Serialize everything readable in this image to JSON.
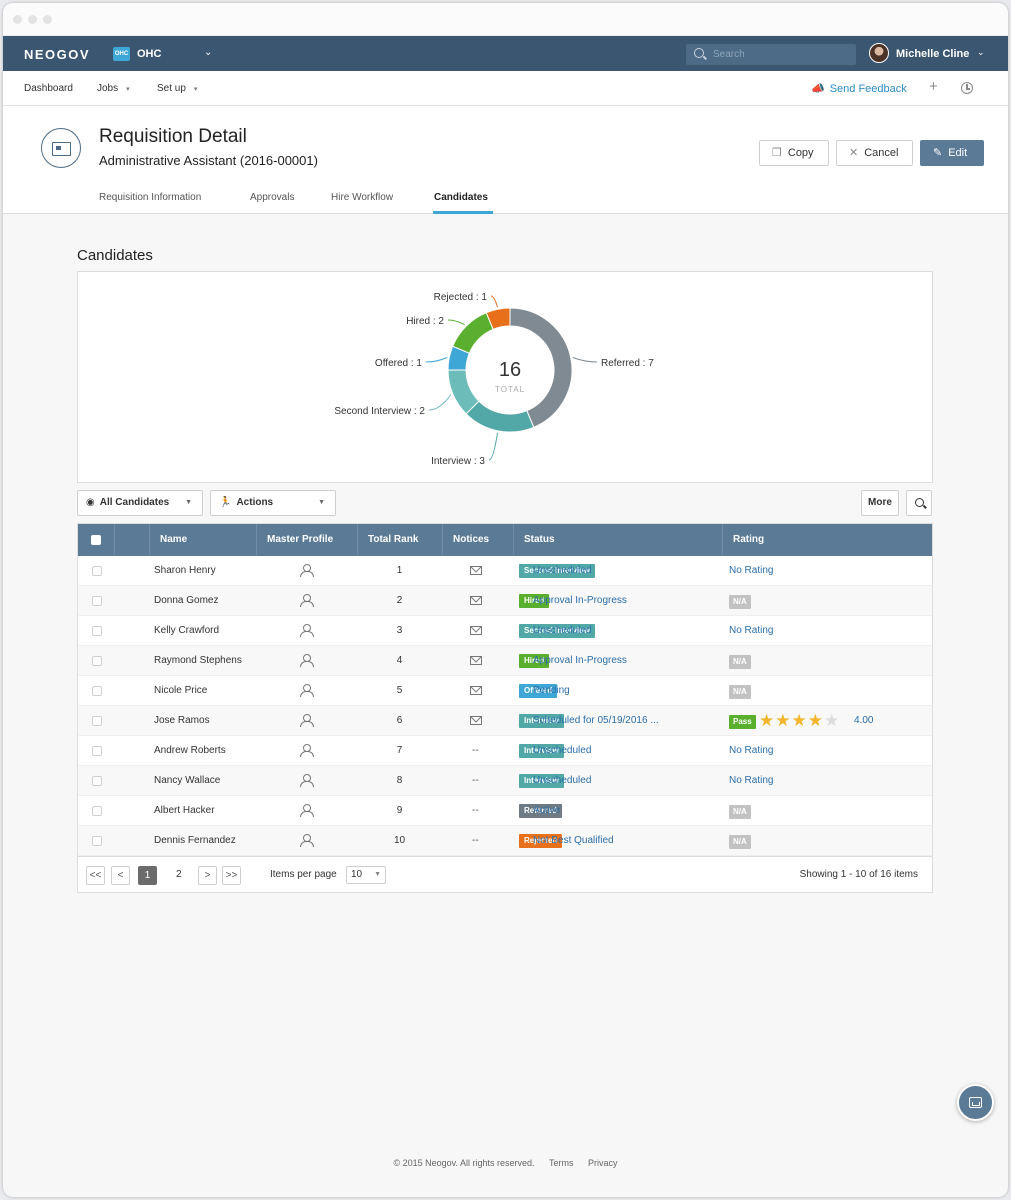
{
  "app": {
    "logo": "NEOGOV",
    "org_badge": "OHC",
    "org_name": "OHC",
    "search_placeholder": "Search",
    "user_name": "Michelle Cline"
  },
  "subnav": {
    "items": [
      {
        "label": "Dashboard"
      },
      {
        "label": "Jobs"
      },
      {
        "label": "Set up"
      }
    ],
    "feedback": "Send Feedback"
  },
  "header": {
    "title": "Requisition Detail",
    "subtitle": "Administrative Assistant (2016-00001)",
    "copy_label": "Copy",
    "cancel_label": "Cancel",
    "edit_label": "Edit",
    "tabs": [
      {
        "label": "Requisition Information"
      },
      {
        "label": "Approvals"
      },
      {
        "label": "Hire Workflow"
      },
      {
        "label": "Candidates"
      }
    ]
  },
  "candidates": {
    "section_title": "Candidates",
    "filter_label": "All Candidates",
    "actions_label": "Actions",
    "more_label": "More"
  },
  "chart_data": {
    "type": "pie",
    "center_value": "16",
    "center_label": "TOTAL",
    "slices": [
      {
        "label": "Referred",
        "value": 7,
        "color": "#7f8a92"
      },
      {
        "label": "Interview",
        "value": 3,
        "color": "#52a7a7"
      },
      {
        "label": "Second Interview",
        "value": 2,
        "color": "#6cbcba"
      },
      {
        "label": "Offered",
        "value": 1,
        "color": "#3fa7d6"
      },
      {
        "label": "Hired",
        "value": 2,
        "color": "#5aaf2f"
      },
      {
        "label": "Rejected",
        "value": 1,
        "color": "#e8701a"
      }
    ]
  },
  "table": {
    "columns": [
      "Name",
      "Master Profile",
      "Total Rank",
      "Notices",
      "Status",
      "Rating"
    ],
    "rows": [
      {
        "name": "Sharon Henry",
        "rank": "1",
        "notice": "mail",
        "status_badge": "Second Interview",
        "badge_color": "#52a7a7",
        "status_text": "Unscheduled",
        "rating": "No Rating"
      },
      {
        "name": "Donna Gomez",
        "rank": "2",
        "notice": "mail",
        "status_badge": "Hired",
        "badge_color": "#5aaf2f",
        "status_text": "Approval In-Progress",
        "rating": "N/A"
      },
      {
        "name": "Kelly Crawford",
        "rank": "3",
        "notice": "mail",
        "status_badge": "Second Interview",
        "badge_color": "#52a7a7",
        "status_text": "Unscheduled",
        "rating": "No Rating"
      },
      {
        "name": "Raymond Stephens",
        "rank": "4",
        "notice": "mail",
        "status_badge": "Hired",
        "badge_color": "#5aaf2f",
        "status_text": "Approval In-Progress",
        "rating": "N/A"
      },
      {
        "name": "Nicole Price",
        "rank": "5",
        "notice": "mail",
        "status_badge": "Offered",
        "badge_color": "#3fa7d6",
        "status_text": "Pending",
        "rating": "N/A"
      },
      {
        "name": "Jose Ramos",
        "rank": "6",
        "notice": "mail",
        "status_badge": "Interview",
        "badge_color": "#52a7a7",
        "status_text": "Scheduled for 05/19/2016 ...",
        "rating": "Pass",
        "stars": 4,
        "rating_value": "4.00"
      },
      {
        "name": "Andrew Roberts",
        "rank": "7",
        "notice": "--",
        "status_badge": "Interview",
        "badge_color": "#52a7a7",
        "status_text": "Unscheduled",
        "rating": "No Rating"
      },
      {
        "name": "Nancy Wallace",
        "rank": "8",
        "notice": "--",
        "status_badge": "Interview",
        "badge_color": "#52a7a7",
        "status_text": "Unscheduled",
        "rating": "No Rating"
      },
      {
        "name": "Albert Hacker",
        "rank": "9",
        "notice": "--",
        "status_badge": "Referred",
        "badge_color": "#6e7a84",
        "status_text": "Active",
        "rating": "N/A"
      },
      {
        "name": "Dennis Fernandez",
        "rank": "10",
        "notice": "--",
        "status_badge": "Rejected",
        "badge_color": "#e8701a",
        "status_text": "Not Best Qualified",
        "rating": "N/A"
      }
    ]
  },
  "pager": {
    "first": "<<",
    "prev": "<",
    "current_page": "1",
    "page_2": "2",
    "next": ">",
    "last": ">>",
    "items_per_page_label": "Items per page",
    "items_per_page": "10",
    "showing": "Showing 1 - 10 of 16 items"
  },
  "footer": {
    "copyright": "© 2015 Neogov. All rights reserved.",
    "terms": "Terms",
    "privacy": "Privacy"
  }
}
